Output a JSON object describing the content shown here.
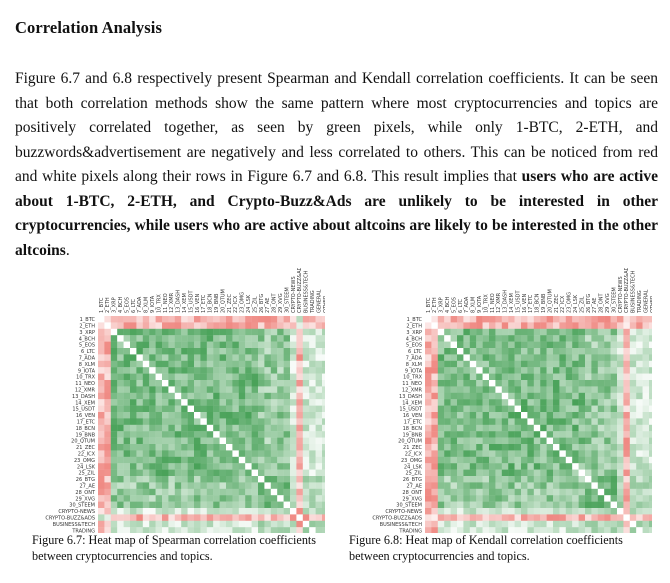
{
  "section": {
    "heading": "Correlation Analysis",
    "p_part1": "Figure 6.7 and 6.8 respectively present Spearman and Kendall correlation coefficients. It can be seen that both correlation methods show the same pattern where most cryptocurrencies and topics are positively correlated together, as seen by green pixels, while only 1-BTC, 2-ETH, and buzzwords&advertisement are negatively and less correlated to others. This can be noticed from red and white pixels along their rows in Figure 6.7 and 6.8. This result implies that ",
    "p_bold": "users who are active about 1-BTC, 2-ETH, and Crypto-Buzz&Ads are unlikely to be interested in other cryptocurrencies, while users who are active about altcoins are likely to be interested in the other altcoins",
    "p_end": "."
  },
  "heatmap_labels": [
    "1_BTC",
    "2_ETH",
    "3_XRP",
    "4_BCH",
    "5_EOS",
    "6_LTC",
    "7_ADA",
    "8_XLM",
    "9_IOTA",
    "10_TRX",
    "11_NEO",
    "12_XMR",
    "13_DASH",
    "14_XEM",
    "15_USDT",
    "16_VEN",
    "17_ETC",
    "18_BCN",
    "19_BNB",
    "20_QTUM",
    "21_ZEC",
    "22_ICX",
    "23_OMG",
    "24_LSK",
    "25_ZIL",
    "26_BTG",
    "27_AE",
    "28_ONT",
    "29_XVG",
    "30_STEEM",
    "CRYPTO-NEWS",
    "CRYPTO-BUZZ&ADS",
    "BUSINESS&TECH",
    "TRADING",
    "GENERAL",
    "OTHER"
  ],
  "figures": [
    {
      "colorbar_title": "Correlation Coefficient (Spearman)",
      "min_label": "-0.376",
      "max_label": "0.661",
      "caption": "Figure 6.7: Heat map of Spearman correlation coefficients between cryptocurrencies and topics."
    },
    {
      "colorbar_title": "Correlation Coefficient (Kendall)",
      "min_label": "-0.2672",
      "max_label": "0.5666",
      "caption": "Figure 6.8: Heat map of Kendall correlation coefficients between cryptocurrencies and topics."
    }
  ],
  "colors": {
    "negative": "#e8534a",
    "neutral": "#ffffff",
    "positive": "#1a8a2e"
  }
}
